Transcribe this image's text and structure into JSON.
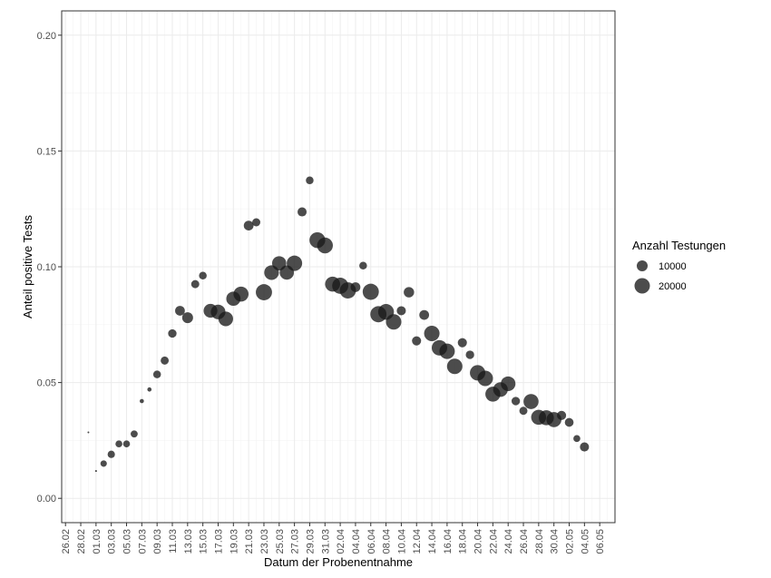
{
  "chart_data": {
    "type": "scatter",
    "title": "",
    "xlabel": "Datum der Probenentnahme",
    "ylabel": "Anteil positive Tests",
    "ylim": [
      -0.0105,
      0.2105
    ],
    "y_ticks": [
      0.0,
      0.05,
      0.1,
      0.15,
      0.2
    ],
    "y_tick_labels": [
      "0.00",
      "0.05",
      "0.10",
      "0.15",
      "0.20"
    ],
    "x_start": "2020-02-26",
    "x_end": "2020-05-06",
    "x_tick_labels": [
      "26.02",
      "28.02",
      "01.03",
      "03.03",
      "05.03",
      "07.03",
      "09.03",
      "11.03",
      "13.03",
      "15.03",
      "17.03",
      "19.03",
      "21.03",
      "23.03",
      "25.03",
      "27.03",
      "29.03",
      "31.03",
      "02.04",
      "04.04",
      "06.04",
      "08.04",
      "10.04",
      "12.04",
      "14.04",
      "16.04",
      "18.04",
      "20.04",
      "22.04",
      "24.04",
      "26.04",
      "28.04",
      "30.04",
      "02.05",
      "04.05",
      "06.05"
    ],
    "x_tick_dates": [
      "2020-02-26",
      "2020-02-28",
      "2020-03-01",
      "2020-03-03",
      "2020-03-05",
      "2020-03-07",
      "2020-03-09",
      "2020-03-11",
      "2020-03-13",
      "2020-03-15",
      "2020-03-17",
      "2020-03-19",
      "2020-03-21",
      "2020-03-23",
      "2020-03-25",
      "2020-03-27",
      "2020-03-29",
      "2020-03-31",
      "2020-04-02",
      "2020-04-04",
      "2020-04-06",
      "2020-04-08",
      "2020-04-10",
      "2020-04-12",
      "2020-04-14",
      "2020-04-16",
      "2020-04-18",
      "2020-04-20",
      "2020-04-22",
      "2020-04-24",
      "2020-04-26",
      "2020-04-28",
      "2020-04-30",
      "2020-05-02",
      "2020-05-04",
      "2020-05-06"
    ],
    "grid": true,
    "point_color": "#1a1a1a",
    "point_opacity": 0.78,
    "legend": {
      "title": "Anzahl Testungen",
      "placement": "right",
      "entries": [
        {
          "label": "10000",
          "size_value": 10000
        },
        {
          "label": "20000",
          "size_value": 20000
        }
      ]
    },
    "points": [
      {
        "x": "2020-02-29",
        "y": 0.0285,
        "n": 200
      },
      {
        "x": "2020-03-01",
        "y": 0.0118,
        "n": 300
      },
      {
        "x": "2020-03-02",
        "y": 0.015,
        "n": 3500
      },
      {
        "x": "2020-03-03",
        "y": 0.019,
        "n": 4500
      },
      {
        "x": "2020-03-04",
        "y": 0.0235,
        "n": 4000
      },
      {
        "x": "2020-03-05",
        "y": 0.0235,
        "n": 4000
      },
      {
        "x": "2020-03-06",
        "y": 0.0278,
        "n": 4200
      },
      {
        "x": "2020-03-07",
        "y": 0.042,
        "n": 1500
      },
      {
        "x": "2020-03-08",
        "y": 0.047,
        "n": 1500
      },
      {
        "x": "2020-03-09",
        "y": 0.0535,
        "n": 5000
      },
      {
        "x": "2020-03-10",
        "y": 0.0595,
        "n": 5500
      },
      {
        "x": "2020-03-11",
        "y": 0.0712,
        "n": 6000
      },
      {
        "x": "2020-03-12",
        "y": 0.081,
        "n": 8000
      },
      {
        "x": "2020-03-13",
        "y": 0.078,
        "n": 10000
      },
      {
        "x": "2020-03-14",
        "y": 0.0925,
        "n": 5500
      },
      {
        "x": "2020-03-15",
        "y": 0.0962,
        "n": 5000
      },
      {
        "x": "2020-03-16",
        "y": 0.081,
        "n": 16000
      },
      {
        "x": "2020-03-17",
        "y": 0.0805,
        "n": 18000
      },
      {
        "x": "2020-03-18",
        "y": 0.0775,
        "n": 18000
      },
      {
        "x": "2020-03-19",
        "y": 0.0862,
        "n": 17000
      },
      {
        "x": "2020-03-20",
        "y": 0.0882,
        "n": 19000
      },
      {
        "x": "2020-03-21",
        "y": 0.1178,
        "n": 8000
      },
      {
        "x": "2020-03-22",
        "y": 0.1192,
        "n": 5500
      },
      {
        "x": "2020-03-23",
        "y": 0.089,
        "n": 22000
      },
      {
        "x": "2020-03-24",
        "y": 0.0975,
        "n": 18000
      },
      {
        "x": "2020-03-25",
        "y": 0.1015,
        "n": 17000
      },
      {
        "x": "2020-03-26",
        "y": 0.0975,
        "n": 17000
      },
      {
        "x": "2020-03-27",
        "y": 0.1015,
        "n": 20000
      },
      {
        "x": "2020-03-28",
        "y": 0.1237,
        "n": 7000
      },
      {
        "x": "2020-03-29",
        "y": 0.1373,
        "n": 5000
      },
      {
        "x": "2020-03-30",
        "y": 0.1115,
        "n": 21000
      },
      {
        "x": "2020-03-31",
        "y": 0.1092,
        "n": 21000
      },
      {
        "x": "2020-04-01",
        "y": 0.0925,
        "n": 19000
      },
      {
        "x": "2020-04-02",
        "y": 0.0918,
        "n": 22000
      },
      {
        "x": "2020-04-03",
        "y": 0.0898,
        "n": 22000
      },
      {
        "x": "2020-04-04",
        "y": 0.0912,
        "n": 8000
      },
      {
        "x": "2020-04-05",
        "y": 0.1005,
        "n": 5000
      },
      {
        "x": "2020-04-06",
        "y": 0.0892,
        "n": 22000
      },
      {
        "x": "2020-04-07",
        "y": 0.0795,
        "n": 22000
      },
      {
        "x": "2020-04-08",
        "y": 0.0805,
        "n": 21000
      },
      {
        "x": "2020-04-09",
        "y": 0.0762,
        "n": 20000
      },
      {
        "x": "2020-04-10",
        "y": 0.081,
        "n": 7000
      },
      {
        "x": "2020-04-11",
        "y": 0.089,
        "n": 9000
      },
      {
        "x": "2020-04-12",
        "y": 0.068,
        "n": 7000
      },
      {
        "x": "2020-04-13",
        "y": 0.0792,
        "n": 8000
      },
      {
        "x": "2020-04-14",
        "y": 0.0712,
        "n": 20000
      },
      {
        "x": "2020-04-15",
        "y": 0.065,
        "n": 20000
      },
      {
        "x": "2020-04-16",
        "y": 0.0635,
        "n": 20000
      },
      {
        "x": "2020-04-17",
        "y": 0.057,
        "n": 20000
      },
      {
        "x": "2020-04-18",
        "y": 0.0672,
        "n": 7000
      },
      {
        "x": "2020-04-19",
        "y": 0.062,
        "n": 6000
      },
      {
        "x": "2020-04-20",
        "y": 0.0542,
        "n": 20000
      },
      {
        "x": "2020-04-21",
        "y": 0.0518,
        "n": 20000
      },
      {
        "x": "2020-04-22",
        "y": 0.045,
        "n": 19000
      },
      {
        "x": "2020-04-23",
        "y": 0.047,
        "n": 18000
      },
      {
        "x": "2020-04-24",
        "y": 0.0495,
        "n": 18000
      },
      {
        "x": "2020-04-25",
        "y": 0.042,
        "n": 6000
      },
      {
        "x": "2020-04-26",
        "y": 0.0378,
        "n": 5500
      },
      {
        "x": "2020-04-27",
        "y": 0.0418,
        "n": 19000
      },
      {
        "x": "2020-04-28",
        "y": 0.035,
        "n": 19000
      },
      {
        "x": "2020-04-29",
        "y": 0.0348,
        "n": 19000
      },
      {
        "x": "2020-04-30",
        "y": 0.034,
        "n": 19000
      },
      {
        "x": "2020-05-01",
        "y": 0.0358,
        "n": 7000
      },
      {
        "x": "2020-05-02",
        "y": 0.0328,
        "n": 6500
      },
      {
        "x": "2020-05-03",
        "y": 0.0258,
        "n": 4000
      },
      {
        "x": "2020-05-04",
        "y": 0.0222,
        "n": 7000
      }
    ]
  }
}
